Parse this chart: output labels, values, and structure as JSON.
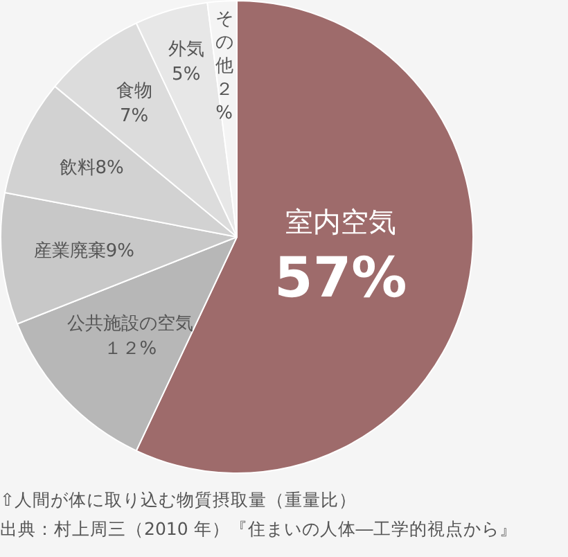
{
  "chart_data": {
    "type": "pie",
    "categories": [
      "室内空気",
      "公共施設の空気",
      "産業廃棄",
      "飲料",
      "食物",
      "外気",
      "その他"
    ],
    "values": [
      57,
      12,
      9,
      8,
      7,
      5,
      2
    ],
    "value_labels": [
      "57%",
      "１２%",
      "9%",
      "8%",
      "7%",
      "5%",
      "２%"
    ],
    "colors": [
      "#9e6b6b",
      "#b7b7b7",
      "#c8c8c8",
      "#d2d2d2",
      "#dcdcdc",
      "#e7e7e7",
      "#f4f4f4"
    ],
    "legend": false,
    "annotations": [
      "⇧人間が体に取り込む物質摂取量（重量比）",
      "出典：村上周三（2010 年）『住まいの人体―工学的視点から』"
    ]
  }
}
